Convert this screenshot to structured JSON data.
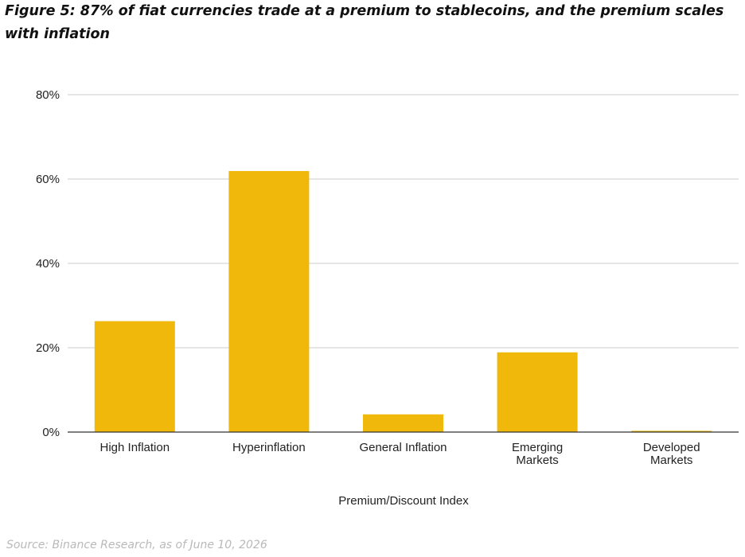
{
  "figure": {
    "title": "Figure 5: 87% of fiat currencies trade at a premium to stablecoins, and the premium scales with inflation",
    "source": "Source: Binance Research, as of June 10, 2026"
  },
  "colors": {
    "bar": "#EFB80B",
    "grid": "#cccccc",
    "axis": "#333333",
    "text": "#222222"
  },
  "chart_data": {
    "type": "bar",
    "categories": [
      "High Inflation",
      "Hyperinflation",
      "General Inflation",
      "Emerging Markets",
      "Developed Markets"
    ],
    "category_lines": [
      [
        "High Inflation"
      ],
      [
        "Hyperinflation"
      ],
      [
        "General Inflation"
      ],
      [
        "Emerging",
        "Markets"
      ],
      [
        "Developed",
        "Markets"
      ]
    ],
    "values": [
      26.3,
      61.9,
      4.2,
      18.9,
      0.3
    ],
    "value_unit": "%",
    "xlabel": "Premium/Discount Index",
    "ylabel": "",
    "ylim": [
      0,
      80
    ],
    "yticks": [
      0,
      20,
      40,
      60,
      80
    ],
    "ytick_labels": [
      "0%",
      "20%",
      "40%",
      "60%",
      "80%"
    ],
    "grid": true,
    "legend": "none"
  }
}
